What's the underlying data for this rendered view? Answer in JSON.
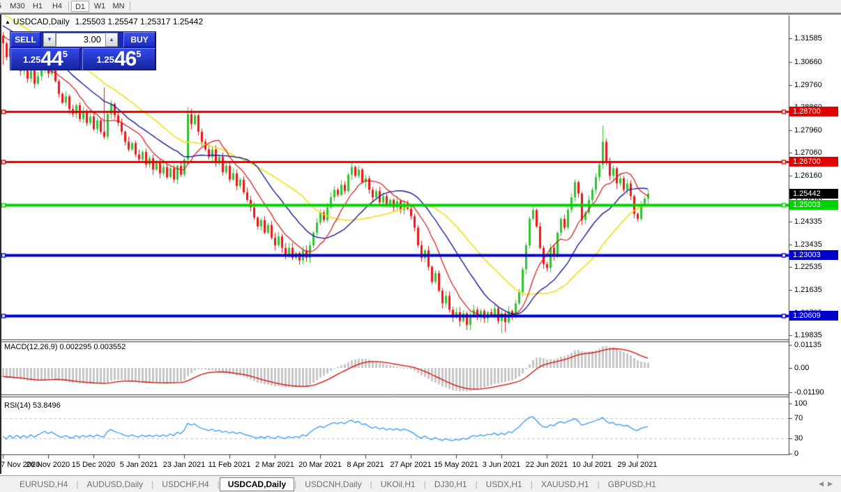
{
  "toolbar": {
    "items": [
      "5",
      "M30",
      "H1",
      "H4",
      "D1",
      "W1",
      "MN"
    ],
    "active": "D1"
  },
  "chart": {
    "title_arrow": "▲",
    "symbol": "USDCAD,Daily",
    "ohlc_text": "1.25503 1.25547 1.25317 1.25442"
  },
  "trade_panel": {
    "sell_label": "SELL",
    "buy_label": "BUY",
    "lot_value": "3.00",
    "spin_down_icon": "▼",
    "spin_up_icon": "▲",
    "bid": {
      "prefix": "1.25",
      "big": "44",
      "sup": "5"
    },
    "ask": {
      "prefix": "1.25",
      "big": "46",
      "sup": "5"
    }
  },
  "price_axis": {
    "ticks": [
      "1.31585",
      "1.30660",
      "1.29760",
      "1.28860",
      "1.27960",
      "1.27060",
      "1.26160",
      "1.25260",
      "1.24335",
      "1.23435",
      "1.22535",
      "1.21635",
      "1.20735",
      "1.19835"
    ],
    "current_price": {
      "text": "1.25442",
      "value": 1.25442,
      "bg": "#000000"
    }
  },
  "macd_panel": {
    "label": "MACD(12,26,9) 0.002295 0.003552",
    "ticks": [
      {
        "text": "0.01135",
        "value": 0.01135
      },
      {
        "text": "0.00",
        "value": 0
      },
      {
        "text": "-0.01190",
        "value": -0.0119
      }
    ],
    "bar_color": "#c6c6c6",
    "signal_color": "#e00000"
  },
  "rsi_panel": {
    "label": "RSI(14) 53.8496",
    "ticks": [
      {
        "text": "100",
        "value": 100
      },
      {
        "text": "70",
        "value": 70
      },
      {
        "text": "30",
        "value": 30
      },
      {
        "text": "0",
        "value": 0
      }
    ],
    "levels": [
      70,
      30
    ],
    "line_color": "#3399ff",
    "level_color": "#c4c4c4"
  },
  "time_axis": {
    "labels": [
      {
        "i": 0,
        "text": "7 Nov 2020"
      },
      {
        "i": 13,
        "text": "26 Nov 2020"
      },
      {
        "i": 26,
        "text": "15 Dec 2020"
      },
      {
        "i": 39,
        "text": "5 Jan 2021"
      },
      {
        "i": 52,
        "text": "23 Jan 2021"
      },
      {
        "i": 65,
        "text": "11 Feb 2021"
      },
      {
        "i": 78,
        "text": "2 Mar 2021"
      },
      {
        "i": 91,
        "text": "20 Mar 2021"
      },
      {
        "i": 104,
        "text": "8 Apr 2021"
      },
      {
        "i": 117,
        "text": "27 Apr 2021"
      },
      {
        "i": 130,
        "text": "15 May 2021"
      },
      {
        "i": 143,
        "text": "3 Jun 2021"
      },
      {
        "i": 156,
        "text": "22 Jun 2021"
      },
      {
        "i": 169,
        "text": "10 Jul 2021"
      },
      {
        "i": 182,
        "text": "29 Jul 2021"
      }
    ]
  },
  "tabs": {
    "items": [
      "EURUSD,H4",
      "AUDUSD,Daily",
      "USDCHF,H4",
      "USDCAD,Daily",
      "USDCNH,Daily",
      "UKOil,H1",
      "DJ30,H1",
      "USDX,H1",
      "XAUUSD,H1",
      "GBPUSD,H1"
    ],
    "active": "USDCAD,Daily",
    "left_arrow": "◀",
    "right_arrow": "▶"
  },
  "chart_data": {
    "type": "candlestick",
    "symbol": "USDCAD",
    "timeframe": "Daily",
    "up_color": "#2ec52e",
    "down_color": "#f01414",
    "closes": [
      1.314,
      1.3085,
      1.312,
      1.306,
      1.3095,
      1.303,
      1.306,
      1.3,
      1.304,
      1.298,
      1.301,
      1.3035,
      1.3065,
      1.302,
      1.3045,
      1.299,
      1.294,
      1.2905,
      1.293,
      1.288,
      1.286,
      1.2895,
      1.284,
      1.287,
      1.2825,
      1.285,
      1.28,
      1.2835,
      1.279,
      1.277,
      1.286,
      1.29,
      1.2855,
      1.2825,
      1.279,
      1.275,
      1.272,
      1.2745,
      1.27,
      1.268,
      1.271,
      1.266,
      1.2685,
      1.264,
      1.2665,
      1.2625,
      1.265,
      1.261,
      1.2645,
      1.26,
      1.2655,
      1.262,
      1.268,
      1.286,
      1.282,
      1.2855,
      1.279,
      1.275,
      1.272,
      1.269,
      1.272,
      1.2665,
      1.269,
      1.263,
      1.2655,
      1.26,
      1.2625,
      1.2575,
      1.26,
      1.255,
      1.252,
      1.249,
      1.245,
      1.2415,
      1.244,
      1.239,
      1.242,
      1.237,
      1.234,
      1.2375,
      1.233,
      1.23,
      1.233,
      1.229,
      1.231,
      1.228,
      1.232,
      1.229,
      1.234,
      1.239,
      1.243,
      1.247,
      1.244,
      1.249,
      1.253,
      1.256,
      1.254,
      1.258,
      1.2555,
      1.262,
      1.265,
      1.2615,
      1.264,
      1.259,
      1.2605,
      1.256,
      1.253,
      1.2555,
      1.251,
      1.2535,
      1.2495,
      1.252,
      1.249,
      1.2515,
      1.248,
      1.2505,
      1.2485,
      1.2455,
      1.241,
      1.234,
      1.229,
      1.232,
      1.2255,
      1.2195,
      1.223,
      1.216,
      1.211,
      1.214,
      1.2085,
      1.2055,
      1.2075,
      1.204,
      1.207,
      1.2025,
      1.206,
      1.2085,
      1.2055,
      1.208,
      1.205,
      1.2075,
      1.2065,
      1.209,
      1.204,
      1.207,
      1.2035,
      1.208,
      1.206,
      1.211,
      1.2155,
      1.2245,
      1.234,
      1.2445,
      1.248,
      1.2415,
      1.233,
      1.2265,
      1.225,
      1.233,
      1.23,
      1.239,
      1.2445,
      1.241,
      1.248,
      1.253,
      1.259,
      1.2545,
      1.244,
      1.247,
      1.252,
      1.256,
      1.261,
      1.266,
      1.275,
      1.267,
      1.2615,
      1.2645,
      1.2585,
      1.2605,
      1.256,
      1.2585,
      1.2535,
      1.2465,
      1.2445,
      1.25,
      1.2525,
      1.25442
    ],
    "wick_overrides": {
      "0": [
        1.3185,
        1.3055
      ],
      "29": [
        1.2965,
        null
      ],
      "53": [
        1.2888,
        null
      ],
      "85": [
        null,
        1.2263
      ],
      "143": [
        null,
        1.1992
      ],
      "144": [
        null,
        1.1996
      ],
      "172": [
        1.2815,
        null
      ],
      "182": [
        null,
        1.2435
      ]
    },
    "moving_averages": [
      {
        "name": "sma-fast",
        "period": 10,
        "color": "#dd1111"
      },
      {
        "name": "sma-mid",
        "period": 21,
        "color": "#1a1aa0"
      },
      {
        "name": "sma-slow",
        "period": 34,
        "color": "#f2df12"
      }
    ],
    "hlines": [
      {
        "price": 1.287,
        "label": "1.28700",
        "color": "#e00000",
        "width": 3
      },
      {
        "price": 1.267,
        "label": "1.26700",
        "color": "#e00000",
        "width": 3
      },
      {
        "price": 1.25003,
        "label": "1.25003",
        "color": "#00d300",
        "width": 4
      },
      {
        "price": 1.23003,
        "label": "1.23003",
        "color": "#0000cc",
        "width": 4
      },
      {
        "price": 1.20609,
        "label": "1.20609",
        "color": "#0000cc",
        "width": 4
      }
    ]
  }
}
